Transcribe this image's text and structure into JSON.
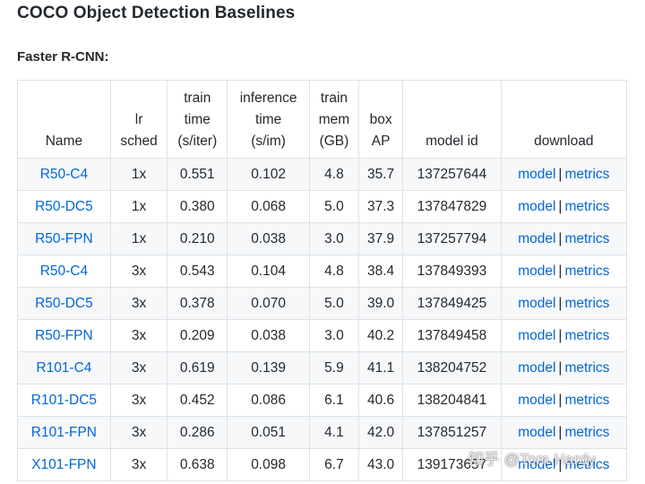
{
  "page": {
    "title": "COCO Object Detection Baselines",
    "subtitle": "Faster R-CNN:"
  },
  "table": {
    "headers": [
      [
        "Name"
      ],
      [
        "lr",
        "sched"
      ],
      [
        "train",
        "time",
        "(s/iter)"
      ],
      [
        "inference",
        "time",
        "(s/im)"
      ],
      [
        "train",
        "mem",
        "(GB)"
      ],
      [
        "box",
        "AP"
      ],
      [
        "model id"
      ],
      [
        "download"
      ]
    ],
    "rows": [
      {
        "name": "R50-C4",
        "lr_sched": "1x",
        "train_time": "0.551",
        "inference_time": "0.102",
        "train_mem": "4.8",
        "box_ap": "35.7",
        "model_id": "137257644"
      },
      {
        "name": "R50-DC5",
        "lr_sched": "1x",
        "train_time": "0.380",
        "inference_time": "0.068",
        "train_mem": "5.0",
        "box_ap": "37.3",
        "model_id": "137847829"
      },
      {
        "name": "R50-FPN",
        "lr_sched": "1x",
        "train_time": "0.210",
        "inference_time": "0.038",
        "train_mem": "3.0",
        "box_ap": "37.9",
        "model_id": "137257794"
      },
      {
        "name": "R50-C4",
        "lr_sched": "3x",
        "train_time": "0.543",
        "inference_time": "0.104",
        "train_mem": "4.8",
        "box_ap": "38.4",
        "model_id": "137849393"
      },
      {
        "name": "R50-DC5",
        "lr_sched": "3x",
        "train_time": "0.378",
        "inference_time": "0.070",
        "train_mem": "5.0",
        "box_ap": "39.0",
        "model_id": "137849425"
      },
      {
        "name": "R50-FPN",
        "lr_sched": "3x",
        "train_time": "0.209",
        "inference_time": "0.038",
        "train_mem": "3.0",
        "box_ap": "40.2",
        "model_id": "137849458"
      },
      {
        "name": "R101-C4",
        "lr_sched": "3x",
        "train_time": "0.619",
        "inference_time": "0.139",
        "train_mem": "5.9",
        "box_ap": "41.1",
        "model_id": "138204752"
      },
      {
        "name": "R101-DC5",
        "lr_sched": "3x",
        "train_time": "0.452",
        "inference_time": "0.086",
        "train_mem": "6.1",
        "box_ap": "40.6",
        "model_id": "138204841"
      },
      {
        "name": "R101-FPN",
        "lr_sched": "3x",
        "train_time": "0.286",
        "inference_time": "0.051",
        "train_mem": "4.1",
        "box_ap": "42.0",
        "model_id": "137851257"
      },
      {
        "name": "X101-FPN",
        "lr_sched": "3x",
        "train_time": "0.638",
        "inference_time": "0.098",
        "train_mem": "6.7",
        "box_ap": "43.0",
        "model_id": "139173657"
      }
    ],
    "download": {
      "model_label": "model",
      "separator": "|",
      "metrics_label": "metrics"
    }
  },
  "watermark": "知乎 @Tom Hardy",
  "colors": {
    "link": "#0366d6",
    "text": "#24292e",
    "stripe": "#f6f8fa",
    "border": "#dfe2e5"
  }
}
